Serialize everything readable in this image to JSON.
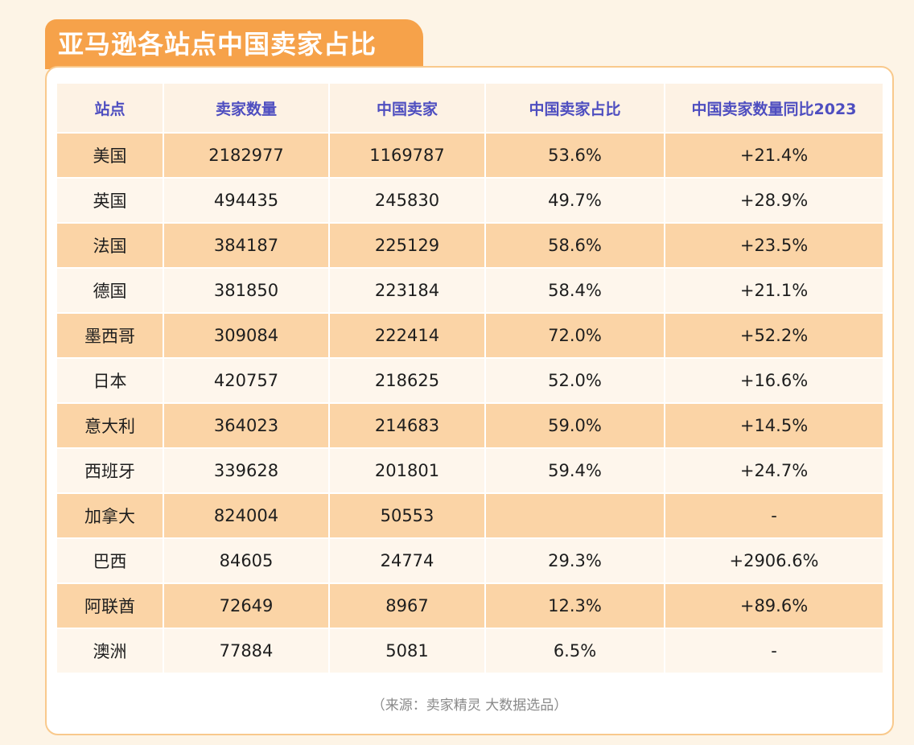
{
  "title": "亚马逊各站点中国卖家占比",
  "table": {
    "headers": [
      "站点",
      "卖家数量",
      "中国卖家",
      "中国卖家占比",
      "中国卖家数量同比2023"
    ],
    "rows": [
      [
        "美国",
        "2182977",
        "1169787",
        "53.6%",
        "+21.4%"
      ],
      [
        "英国",
        "494435",
        "245830",
        "49.7%",
        "+28.9%"
      ],
      [
        "法国",
        "384187",
        "225129",
        "58.6%",
        "+23.5%"
      ],
      [
        "德国",
        "381850",
        "223184",
        "58.4%",
        "+21.1%"
      ],
      [
        "墨西哥",
        "309084",
        "222414",
        "72.0%",
        "+52.2%"
      ],
      [
        "日本",
        "420757",
        "218625",
        "52.0%",
        "+16.6%"
      ],
      [
        "意大利",
        "364023",
        "214683",
        "59.0%",
        "+14.5%"
      ],
      [
        "西班牙",
        "339628",
        "201801",
        "59.4%",
        "+24.7%"
      ],
      [
        "加拿大",
        "824004",
        "50553",
        "",
        "-"
      ],
      [
        "巴西",
        "84605",
        "24774",
        "29.3%",
        "+2906.6%"
      ],
      [
        "阿联酋",
        "72649",
        "8967",
        "12.3%",
        "+89.6%"
      ],
      [
        "澳洲",
        "77884",
        "5081",
        "6.5%",
        "-"
      ]
    ]
  },
  "source_note": "（来源：卖家精灵 大数据选品）",
  "colors": {
    "accent_orange": "#f6a24a",
    "header_text": "#4e4ec0",
    "row_odd": "#fbd4a6",
    "row_even": "#fef6ec"
  }
}
